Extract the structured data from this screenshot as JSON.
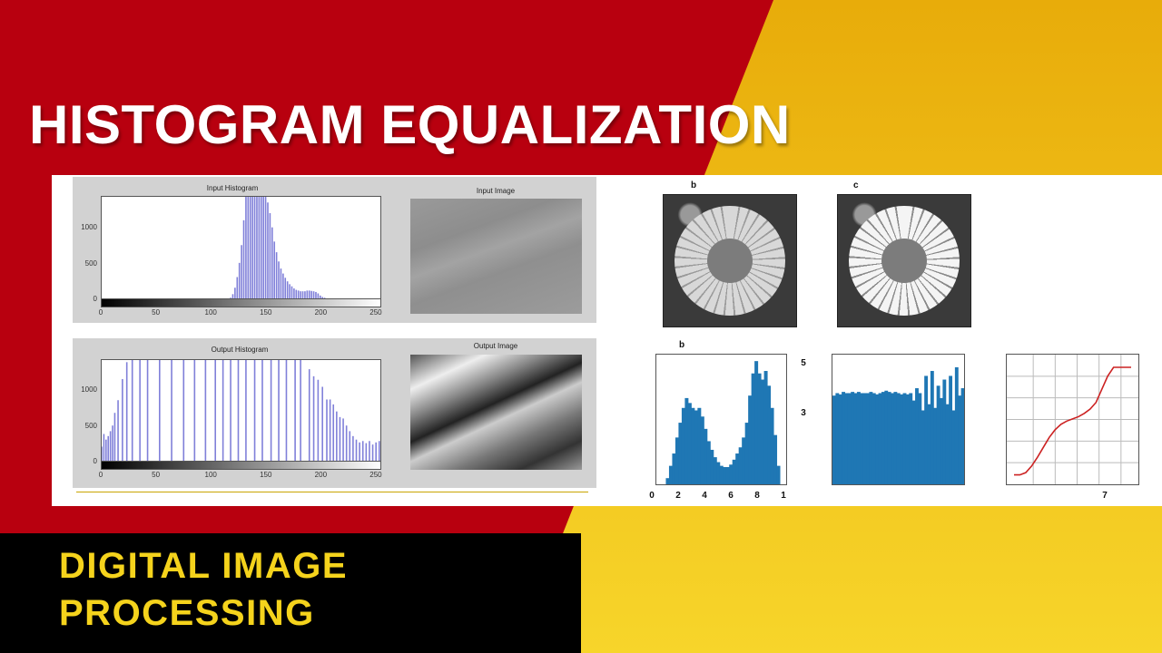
{
  "title": "HISTOGRAM EQUALIZATION",
  "subtitle": [
    "DIGITAL IMAGE",
    "PROCESSING"
  ],
  "colors": {
    "red": "#b8000f",
    "yellow": "#efb90c",
    "subtitle": "#f5d31c",
    "bar_matlab": "#5555cc",
    "bar_mpl": "#1f77b4",
    "cdf": "#cc2222"
  },
  "left_figure": {
    "input_hist_title": "Input Histogram",
    "input_image_title": "Input Image",
    "output_hist_title": "Output Histogram",
    "output_image_title": "Output Image",
    "yticks": [
      "0",
      "500",
      "1000"
    ],
    "xticks": [
      "0",
      "50",
      "100",
      "150",
      "200",
      "250"
    ]
  },
  "right_figure": {
    "labels": [
      "b",
      "c",
      "b"
    ],
    "xticks": [
      "0",
      "2",
      "4",
      "6",
      "8",
      "1"
    ],
    "right_ticks": [
      "5",
      "3"
    ],
    "cdf_xtick": "7"
  },
  "chart_data": [
    {
      "type": "bar",
      "name_ref": "Input Histogram",
      "xlim": [
        0,
        255
      ],
      "ylim": [
        0,
        1430
      ],
      "x": [
        118,
        120,
        122,
        124,
        126,
        128,
        130,
        132,
        134,
        136,
        138,
        140,
        142,
        144,
        146,
        148,
        150,
        152,
        154,
        156,
        158,
        160,
        162,
        164,
        166,
        168,
        170,
        172,
        174,
        176,
        178,
        180,
        182,
        184,
        186,
        188,
        190,
        192,
        194,
        196,
        198,
        200,
        202,
        204
      ],
      "values": [
        10,
        60,
        150,
        300,
        500,
        750,
        1100,
        1430,
        1430,
        1430,
        1430,
        1430,
        1430,
        1430,
        1430,
        1430,
        1430,
        1350,
        1200,
        1000,
        800,
        650,
        520,
        420,
        350,
        290,
        240,
        200,
        170,
        140,
        120,
        110,
        100,
        100,
        100,
        110,
        110,
        105,
        100,
        90,
        70,
        40,
        20,
        10
      ]
    },
    {
      "type": "bar",
      "name_ref": "Output Histogram",
      "xlim": [
        0,
        255
      ],
      "ylim": [
        0,
        1430
      ],
      "x": [
        0,
        2,
        4,
        6,
        8,
        10,
        12,
        15,
        19,
        23,
        28,
        35,
        42,
        53,
        64,
        75,
        85,
        95,
        104,
        111,
        118,
        125,
        132,
        140,
        147,
        155,
        162,
        169,
        177,
        182,
        190,
        194,
        198,
        202,
        206,
        209,
        212,
        215,
        218,
        221,
        224,
        227,
        230,
        233,
        236,
        239,
        242,
        245,
        248,
        251,
        254
      ],
      "values": [
        200,
        380,
        300,
        350,
        420,
        500,
        680,
        860,
        1160,
        1400,
        1430,
        1430,
        1430,
        1430,
        1430,
        1430,
        1430,
        1430,
        1430,
        1430,
        1430,
        1430,
        1430,
        1430,
        1430,
        1430,
        1430,
        1430,
        1430,
        1430,
        1300,
        1200,
        1150,
        1050,
        870,
        870,
        800,
        700,
        620,
        600,
        500,
        420,
        350,
        300,
        260,
        280,
        250,
        280,
        230,
        260,
        280
      ]
    },
    {
      "type": "bar",
      "name_ref": "b",
      "xlim": [
        0,
        1
      ],
      "ylim": [
        0,
        1
      ],
      "values": [
        0,
        0,
        0,
        0.05,
        0.15,
        0.25,
        0.38,
        0.5,
        0.62,
        0.7,
        0.66,
        0.62,
        0.6,
        0.62,
        0.55,
        0.45,
        0.35,
        0.28,
        0.22,
        0.18,
        0.15,
        0.14,
        0.14,
        0.16,
        0.2,
        0.25,
        0.3,
        0.38,
        0.5,
        0.72,
        0.9,
        1.0,
        0.9,
        0.85,
        0.92,
        0.8,
        0.62,
        0.4,
        0.15,
        0,
        0
      ]
    },
    {
      "type": "bar",
      "xlim": [
        0,
        1
      ],
      "ylim": [
        0,
        1
      ],
      "values": [
        0.72,
        0.74,
        0.73,
        0.75,
        0.74,
        0.74,
        0.75,
        0.74,
        0.75,
        0.74,
        0.74,
        0.74,
        0.75,
        0.74,
        0.73,
        0.74,
        0.75,
        0.76,
        0.75,
        0.74,
        0.75,
        0.74,
        0.73,
        0.74,
        0.73,
        0.74,
        0.68,
        0.78,
        0.74,
        0.6,
        0.88,
        0.65,
        0.92,
        0.62,
        0.8,
        0.7,
        0.85,
        0.65,
        0.88,
        0.6,
        0.95,
        0.72,
        0.78
      ]
    },
    {
      "type": "line",
      "xlim": [
        0,
        1
      ],
      "ylim": [
        0,
        1
      ],
      "grid": true,
      "x": [
        0,
        0.05,
        0.1,
        0.15,
        0.2,
        0.25,
        0.3,
        0.35,
        0.4,
        0.45,
        0.5,
        0.55,
        0.6,
        0.65,
        0.7,
        0.75,
        0.8,
        0.85,
        0.9,
        0.95,
        1
      ],
      "y": [
        0.02,
        0.02,
        0.04,
        0.1,
        0.18,
        0.27,
        0.36,
        0.43,
        0.48,
        0.51,
        0.53,
        0.55,
        0.58,
        0.62,
        0.68,
        0.8,
        0.92,
        1.0,
        1.0,
        1.0,
        1.0
      ]
    }
  ]
}
